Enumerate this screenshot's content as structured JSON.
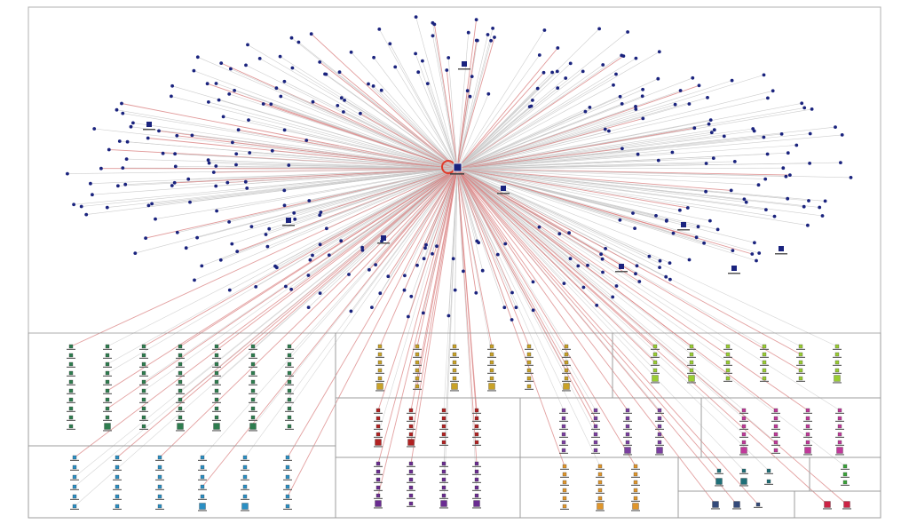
{
  "graph": {
    "hub_node": "central-hub",
    "hub_ring_color": "#e03a2a",
    "top_node_color": "#1a237e",
    "edge_color": "#c8c8c8",
    "reply_edge_color": "#d98080",
    "top_cluster_node_count": 330,
    "groups": [
      {
        "name": "group-1",
        "color": "#2e7d4f",
        "layout": "grid"
      },
      {
        "name": "group-2",
        "color": "#c9a227",
        "layout": "grid"
      },
      {
        "name": "group-3",
        "color": "#9acd32",
        "layout": "grid"
      },
      {
        "name": "group-4",
        "color": "#2a8fc4",
        "layout": "grid"
      },
      {
        "name": "group-5",
        "color": "#b22222",
        "layout": "grid"
      },
      {
        "name": "group-6",
        "color": "#7b3fa0",
        "layout": "grid"
      },
      {
        "name": "group-7",
        "color": "#c0399a",
        "layout": "grid"
      },
      {
        "name": "group-8",
        "color": "#6a2c91",
        "layout": "grid"
      },
      {
        "name": "group-9",
        "color": "#e0962b",
        "layout": "grid"
      },
      {
        "name": "group-10",
        "color": "#1f6f78",
        "layout": "grid"
      },
      {
        "name": "group-11",
        "color": "#3aa43a",
        "layout": "grid"
      },
      {
        "name": "group-12",
        "color": "#344a7a",
        "layout": "grid"
      },
      {
        "name": "group-13",
        "color": "#cc2244",
        "layout": "grid"
      }
    ]
  }
}
